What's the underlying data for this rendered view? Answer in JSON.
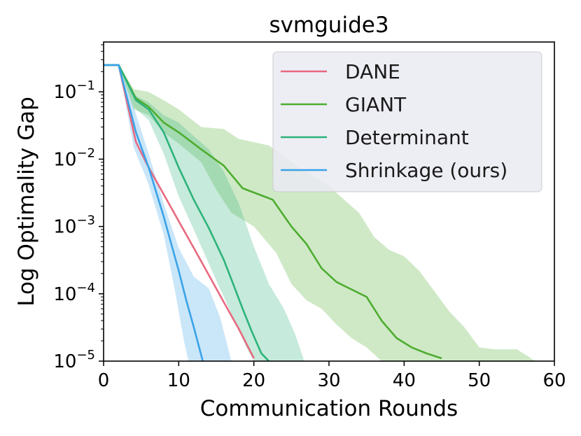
{
  "chart_data": {
    "type": "line",
    "title": "svmguide3",
    "xlabel": "Communication Rounds",
    "ylabel": "Log Optimality Gap",
    "yscale": "log",
    "xlim": [
      0,
      60
    ],
    "ylim": [
      1e-05,
      0.55
    ],
    "x_ticks": [
      0,
      10,
      20,
      30,
      40,
      50,
      60
    ],
    "y_ticks": [
      {
        "value": 0.1,
        "base": "10",
        "exp": "−1"
      },
      {
        "value": 0.01,
        "base": "10",
        "exp": "−2"
      },
      {
        "value": 0.001,
        "base": "10",
        "exp": "−3"
      },
      {
        "value": 0.0001,
        "base": "10",
        "exp": "−4"
      },
      {
        "value": 1e-05,
        "base": "10",
        "exp": "−5"
      }
    ],
    "legend_position": "top-right",
    "series": [
      {
        "name": "DANE",
        "color": "#e8697f",
        "points": [
          [
            0,
            0.25
          ],
          [
            2,
            0.25
          ],
          [
            4.3,
            0.018
          ],
          [
            6,
            0.0075
          ],
          [
            8,
            0.003
          ],
          [
            10,
            0.0012
          ],
          [
            12,
            0.00048
          ],
          [
            14,
            0.00019
          ],
          [
            16,
            7.5e-05
          ],
          [
            18,
            3e-05
          ],
          [
            20,
            1.1e-05
          ]
        ],
        "band": null
      },
      {
        "name": "GIANT",
        "color": "#4ead2f",
        "points": [
          [
            0,
            0.25
          ],
          [
            2,
            0.25
          ],
          [
            4.3,
            0.08
          ],
          [
            6,
            0.06
          ],
          [
            8,
            0.035
          ],
          [
            10,
            0.025
          ],
          [
            13,
            0.014
          ],
          [
            16,
            0.008
          ],
          [
            18.5,
            0.0037
          ],
          [
            22.5,
            0.0025
          ],
          [
            25,
            0.001
          ],
          [
            27,
            0.00055
          ],
          [
            29,
            0.00024
          ],
          [
            31,
            0.00015
          ],
          [
            35,
            9e-05
          ],
          [
            37,
            4e-05
          ],
          [
            39,
            2.2e-05
          ],
          [
            41,
            1.6e-05
          ],
          [
            43,
            1.3e-05
          ],
          [
            45,
            1.1e-05
          ]
        ],
        "band": {
          "upper": [
            [
              0,
              0.25
            ],
            [
              2,
              0.25
            ],
            [
              4,
              0.11
            ],
            [
              6,
              0.1
            ],
            [
              8,
              0.075
            ],
            [
              10,
              0.055
            ],
            [
              13,
              0.03
            ],
            [
              16,
              0.028
            ],
            [
              18,
              0.02
            ],
            [
              22,
              0.016
            ],
            [
              26,
              0.0075
            ],
            [
              30,
              0.004
            ],
            [
              32,
              0.0025
            ],
            [
              34,
              0.0016
            ],
            [
              36,
              0.0007
            ],
            [
              38,
              0.00045
            ],
            [
              40,
              0.00036
            ],
            [
              42,
              0.00022
            ],
            [
              44,
              0.00011
            ],
            [
              46,
              5.5e-05
            ],
            [
              48,
              3.2e-05
            ],
            [
              50,
              1.6e-05
            ],
            [
              52,
              1.5e-05
            ],
            [
              55,
              1.5e-05
            ],
            [
              57.5,
              1e-05
            ]
          ],
          "lower": [
            [
              0,
              0.25
            ],
            [
              2,
              0.25
            ],
            [
              4,
              0.055
            ],
            [
              6,
              0.045
            ],
            [
              8,
              0.025
            ],
            [
              10,
              0.017
            ],
            [
              13,
              0.009
            ],
            [
              15,
              0.0035
            ],
            [
              17,
              0.0016
            ],
            [
              20,
              0.001
            ],
            [
              23,
              0.0004
            ],
            [
              25,
              0.00014
            ],
            [
              27,
              8e-05
            ],
            [
              29,
              6e-05
            ],
            [
              31,
              3.5e-05
            ],
            [
              33,
              2.2e-05
            ],
            [
              35,
              1.6e-05
            ],
            [
              37,
              1e-05
            ]
          ]
        }
      },
      {
        "name": "Determinant",
        "color": "#2db37a",
        "points": [
          [
            0,
            0.25
          ],
          [
            2,
            0.25
          ],
          [
            4.3,
            0.075
          ],
          [
            6,
            0.055
          ],
          [
            8,
            0.025
          ],
          [
            10,
            0.0075
          ],
          [
            12,
            0.0025
          ],
          [
            14,
            0.00095
          ],
          [
            16,
            0.00032
          ],
          [
            17.3,
            0.000135
          ],
          [
            18.5,
            6e-05
          ],
          [
            19.7,
            2.8e-05
          ],
          [
            21,
            1.3e-05
          ],
          [
            22,
            1e-05
          ]
        ],
        "band": {
          "upper": [
            [
              0,
              0.25
            ],
            [
              2,
              0.25
            ],
            [
              4,
              0.09
            ],
            [
              6,
              0.07
            ],
            [
              8,
              0.045
            ],
            [
              10,
              0.035
            ],
            [
              12,
              0.022
            ],
            [
              14,
              0.014
            ],
            [
              16,
              0.0065
            ],
            [
              18,
              0.0022
            ],
            [
              20,
              0.0005
            ],
            [
              22,
              0.00014
            ],
            [
              24,
              6e-05
            ],
            [
              25.5,
              2.5e-05
            ],
            [
              26.7,
              1e-05
            ]
          ],
          "lower": [
            [
              0,
              0.25
            ],
            [
              2,
              0.25
            ],
            [
              4,
              0.06
            ],
            [
              6,
              0.038
            ],
            [
              8,
              0.012
            ],
            [
              10,
              0.0028
            ],
            [
              12,
              0.0009
            ],
            [
              14,
              0.00028
            ],
            [
              16,
              9e-05
            ],
            [
              17.5,
              3.8e-05
            ],
            [
              19,
              1.6e-05
            ],
            [
              20,
              1e-05
            ]
          ]
        }
      },
      {
        "name": "Shrinkage (ours)",
        "color": "#3aa3e8",
        "points": [
          [
            0,
            0.25
          ],
          [
            2,
            0.25
          ],
          [
            4.3,
            0.025
          ],
          [
            6,
            0.0075
          ],
          [
            8,
            0.0014
          ],
          [
            10,
            0.00022
          ],
          [
            11,
            8e-05
          ],
          [
            12,
            3.2e-05
          ],
          [
            13.2,
            1e-05
          ]
        ],
        "band": {
          "upper": [
            [
              0,
              0.25
            ],
            [
              2,
              0.25
            ],
            [
              4,
              0.06
            ],
            [
              6,
              0.012
            ],
            [
              8,
              0.0022
            ],
            [
              10,
              0.00048
            ],
            [
              12,
              0.00018
            ],
            [
              14,
              0.00012
            ],
            [
              15.5,
              4.5e-05
            ],
            [
              17,
              1e-05
            ]
          ],
          "lower": [
            [
              0,
              0.25
            ],
            [
              2,
              0.25
            ],
            [
              4,
              0.015
            ],
            [
              6,
              0.0042
            ],
            [
              8,
              0.00075
            ],
            [
              9.5,
              0.00011
            ],
            [
              10.7,
              2e-05
            ],
            [
              11.3,
              1e-05
            ]
          ]
        }
      }
    ]
  }
}
